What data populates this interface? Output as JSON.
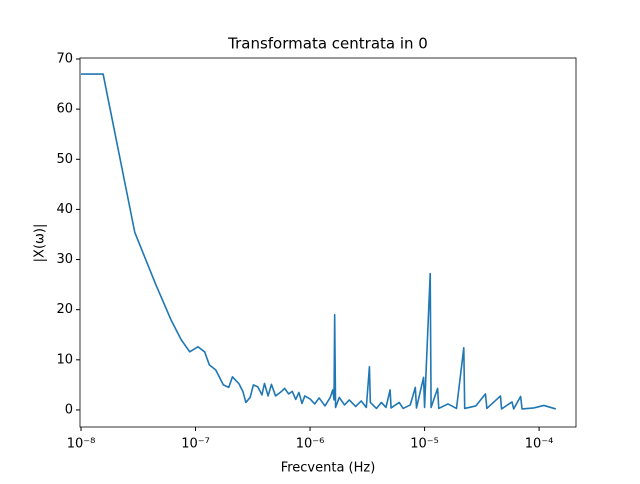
{
  "chart_data": {
    "type": "line",
    "title": "Transformata centrata in 0",
    "xlabel": "Frecventa (Hz)",
    "ylabel": "|X(ω)|",
    "xscale": "log",
    "x": [
      1e-08,
      1.56e-08,
      2.95e-08,
      4.5e-08,
      6.1e-08,
      7.5e-08,
      8.9e-08,
      1.05e-07,
      1.2e-07,
      1.32e-07,
      1.5e-07,
      1.75e-07,
      1.95e-07,
      2.1e-07,
      2.4e-07,
      2.6e-07,
      2.75e-07,
      3e-07,
      3.2e-07,
      3.5e-07,
      3.8e-07,
      4e-07,
      4.3e-07,
      4.6e-07,
      5e-07,
      5.5e-07,
      6e-07,
      6.5e-07,
      7e-07,
      7.5e-07,
      8e-07,
      8.5e-07,
      9e-07,
      1e-06,
      1.1e-06,
      1.2e-06,
      1.35e-06,
      1.5e-06,
      1.58e-06,
      1.62e-06,
      1.64e-06,
      1.67e-06,
      1.8e-06,
      2e-06,
      2.2e-06,
      2.5e-06,
      2.8e-06,
      3.1e-06,
      3.3e-06,
      3.36e-06,
      3.8e-06,
      4.2e-06,
      4.6e-06,
      5e-06,
      5.1e-06,
      6e-06,
      6.5e-06,
      7.5e-06,
      8.3e-06,
      8.5e-06,
      9.8e-06,
      1e-05,
      1.12e-05,
      1.14e-05,
      1.3e-05,
      1.33e-05,
      1.6e-05,
      1.9e-05,
      2.2e-05,
      2.24e-05,
      2.8e-05,
      3.4e-05,
      3.5e-05,
      4.6e-05,
      4.7e-05,
      5.8e-05,
      6e-05,
      6.9e-05,
      7.1e-05,
      9e-05,
      0.00011,
      0.00014
    ],
    "series": [
      {
        "color": "#1f77b4",
        "values": [
          67,
          67,
          35.4,
          25,
          18,
          14,
          11.6,
          12.6,
          11.6,
          9,
          8,
          5,
          4.5,
          6.6,
          5.2,
          3.6,
          1.5,
          2.5,
          5,
          4.6,
          3,
          5.3,
          2.8,
          5.1,
          2.8,
          3.5,
          4.3,
          3.2,
          3.7,
          2.1,
          3.5,
          1.3,
          2.8,
          2.2,
          1.2,
          2.4,
          0.8,
          2.5,
          4,
          2,
          19,
          0.5,
          2.5,
          1,
          2,
          0.7,
          1.8,
          0.5,
          8.6,
          1.5,
          0.3,
          1.5,
          0.5,
          4,
          0.4,
          1.5,
          0.3,
          1,
          4.5,
          0.4,
          6.5,
          0.5,
          27.2,
          0.5,
          4.3,
          0.3,
          1.2,
          0.3,
          12.4,
          0.3,
          0.8,
          3.2,
          0.3,
          2.8,
          0.2,
          1.6,
          0.2,
          2.7,
          0.2,
          0.4,
          0.9,
          0.2
        ]
      }
    ],
    "xlim": [
      9.8e-09,
      0.00021
    ],
    "ylim": [
      -3.4,
      70.2
    ],
    "xticks": [
      {
        "value": 1e-08,
        "label": "10⁻⁸"
      },
      {
        "value": 1e-07,
        "label": "10⁻⁷"
      },
      {
        "value": 1e-06,
        "label": "10⁻⁶"
      },
      {
        "value": 1e-05,
        "label": "10⁻⁵"
      },
      {
        "value": 0.0001,
        "label": "10⁻⁴"
      }
    ],
    "yticks": [
      0,
      10,
      20,
      30,
      40,
      50,
      60,
      70
    ]
  }
}
